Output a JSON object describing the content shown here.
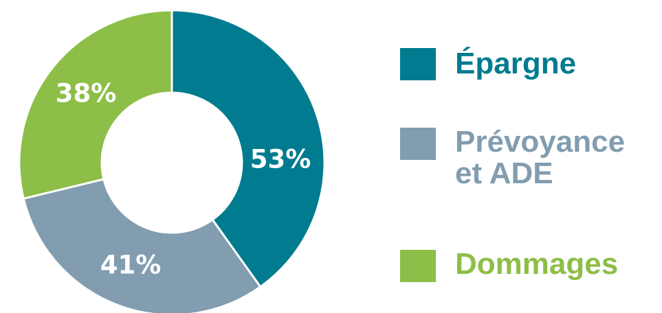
{
  "chart_data": {
    "type": "pie",
    "title": "",
    "categories": [
      "Épargne",
      "Prévoyance et ADE",
      "Dommages"
    ],
    "values": [
      53,
      41,
      38
    ],
    "labels": [
      "53%",
      "41%",
      "38%"
    ],
    "colors": [
      "#007B8F",
      "#819DAF",
      "#8DBE47"
    ],
    "donut": true,
    "legend": {
      "placement": "right",
      "items": [
        {
          "label": "Épargne",
          "color": "#007B8F"
        },
        {
          "label_line1": "Prévoyance",
          "label_line2": "et ADE",
          "color": "#819DAF"
        },
        {
          "label": "Dommages",
          "color": "#8DBE47"
        }
      ]
    }
  }
}
